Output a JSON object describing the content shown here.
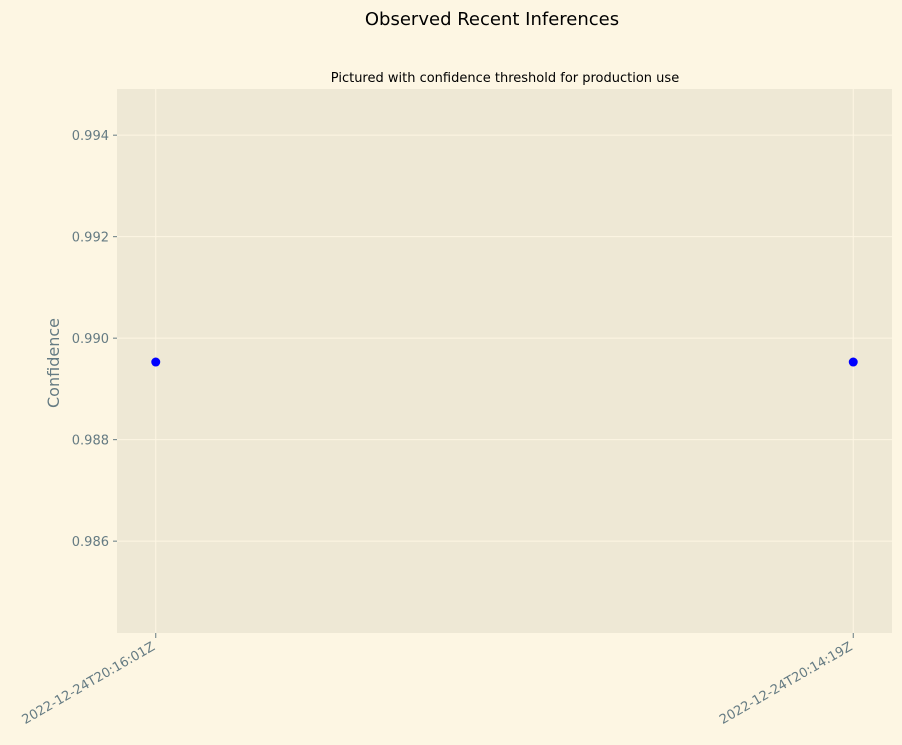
{
  "chart_data": {
    "type": "scatter",
    "title": "Observed Recent Inferences",
    "subtitle": "Pictured with confidence threshold for production use",
    "xlabel": "",
    "ylabel": "Confidence",
    "x": [
      "2022-12-24T20:16:01Z",
      "2022-12-24T20:14:19Z"
    ],
    "series": [
      {
        "values": [
          0.98953,
          0.98953
        ],
        "color": "#0000ff"
      }
    ],
    "ylim": [
      0.98419,
      0.99491
    ],
    "yticks": [
      0.986,
      0.988,
      0.99,
      0.992,
      0.994
    ],
    "ytick_labels": [
      "0.986",
      "0.988",
      "0.990",
      "0.992",
      "0.994"
    ],
    "grid": true,
    "legend": "none",
    "colors": {
      "figure_background": "#fdf6e3",
      "axes_background": "#eee8d5",
      "grid": "#fdf6e3",
      "text": "#657b83",
      "title": "#000000"
    }
  }
}
